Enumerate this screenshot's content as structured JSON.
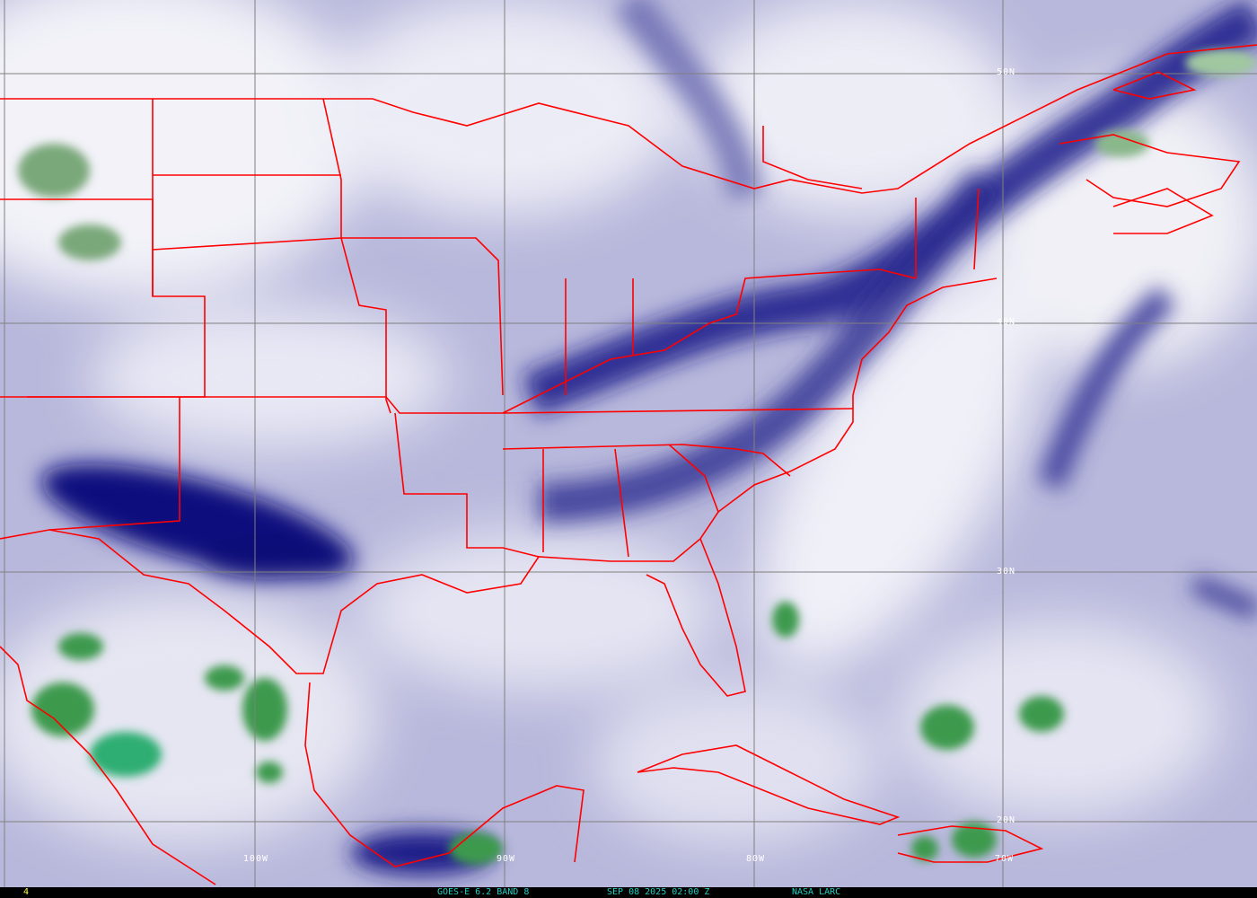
{
  "image": {
    "type": "satellite water vapor imagery",
    "region": "eastern United States, Gulf of Mexico, Caribbean",
    "colors": {
      "dry": "#0a0a78",
      "moist": "#f0f0f8",
      "cloud_tops": "#2e8b57",
      "borders": "#ff0000",
      "gridlines": "#808080"
    }
  },
  "grid_labels": {
    "lat": [
      "50N",
      "40N",
      "30N",
      "20N"
    ],
    "lon": [
      "100W",
      "90W",
      "80W",
      "70W"
    ]
  },
  "footer": {
    "frame_number": "4",
    "satellite": "GOES-E 6.2 BAND 8",
    "timestamp": "SEP 08 2025 02:00 Z",
    "source": "NASA LARC"
  }
}
